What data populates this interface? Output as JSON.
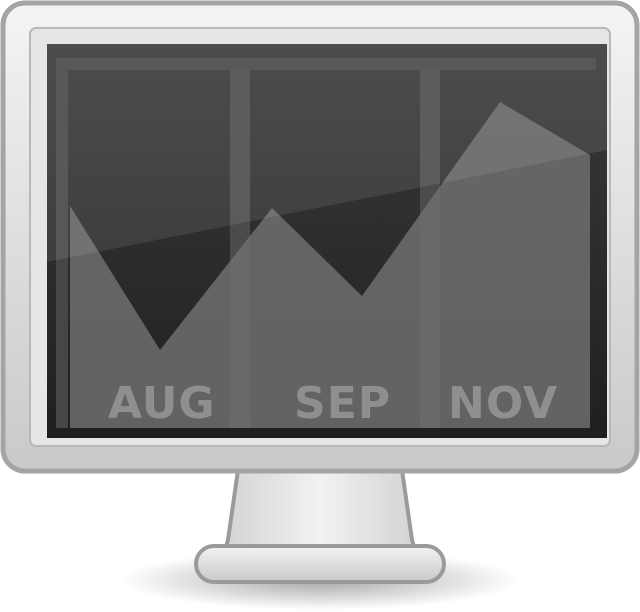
{
  "icon": "computer-monitor-chart-icon",
  "screen": {
    "months": [
      {
        "key": "aug",
        "label": "AUG"
      },
      {
        "key": "sep",
        "label": "SEP"
      },
      {
        "key": "nov",
        "label": "NOV"
      }
    ]
  },
  "colors": {
    "bezel": "#d8d8d8",
    "bezel_edge": "#9a9a9a",
    "screen": "#2c2c2c",
    "chart_area": "#6e6e6e",
    "label": "#8f8f8f"
  }
}
